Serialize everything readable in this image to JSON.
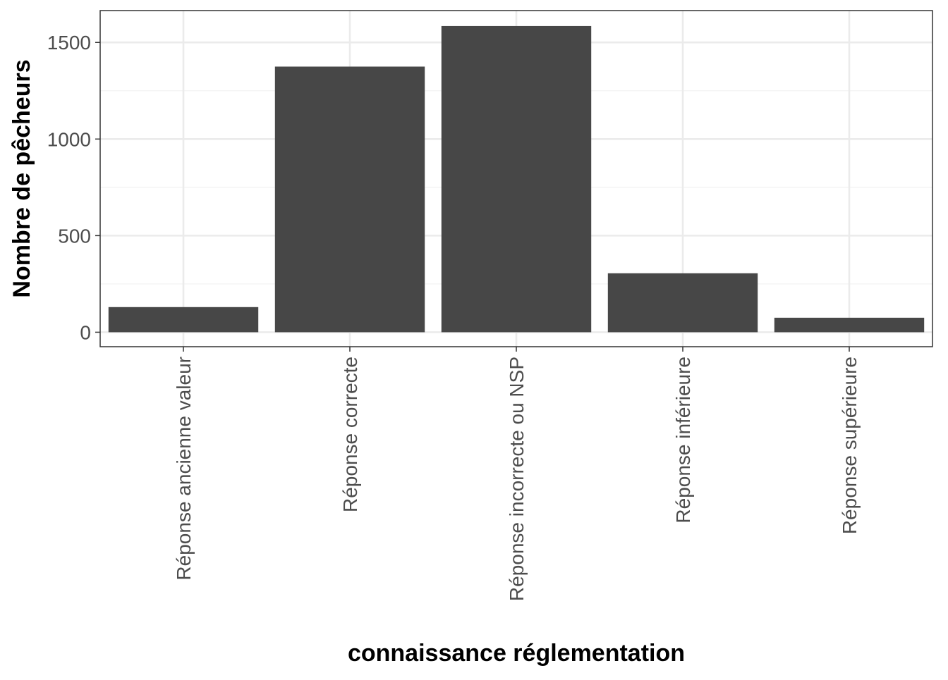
{
  "chart_data": {
    "type": "bar",
    "title": "",
    "xlabel": "connaissance réglementation",
    "ylabel": "Nombre de pêcheurs",
    "categories": [
      "Réponse ancienne valeur",
      "Réponse correcte",
      "Réponse incorrecte ou NSP",
      "Réponse inférieure",
      "Réponse supérieure"
    ],
    "values": [
      130,
      1375,
      1585,
      305,
      75
    ],
    "ylim": [
      -75,
      1665
    ],
    "yticks": [
      0,
      500,
      1000,
      1500
    ],
    "y_minor_ticks": [
      250,
      750,
      1250
    ],
    "grid": true,
    "legend": "none",
    "colors": {
      "bar": "#474747",
      "grid_major": "#ebebeb",
      "grid_minor": "#f3f3f3",
      "panel_border": "#333333",
      "tick_text": "#4d4d4d",
      "axis_title": "#000000"
    }
  }
}
